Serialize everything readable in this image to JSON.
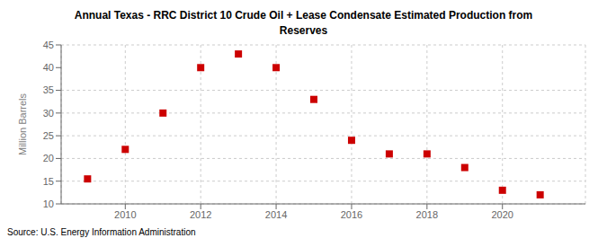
{
  "chart_data": {
    "type": "scatter",
    "title": "Annual Texas - RRC District 10 Crude Oil + Lease Condensate Estimated Production from\nReserves",
    "ylabel": "Million Barrels",
    "annotations": [
      "Source: U.S. Energy Information Administration"
    ],
    "x": [
      2009,
      2010,
      2011,
      2012,
      2013,
      2014,
      2015,
      2016,
      2017,
      2018,
      2019,
      2020,
      2021
    ],
    "values": [
      15.5,
      22.0,
      30.0,
      40.0,
      43.0,
      40.0,
      33.0,
      24.0,
      21.0,
      21.0,
      18.0,
      13.0,
      12.0
    ],
    "color": "#cc0000",
    "marker": "square",
    "xlim": [
      2008.3,
      2022.2
    ],
    "ylim": [
      10,
      45
    ],
    "xticks": [
      2010,
      2012,
      2014,
      2016,
      2018,
      2020
    ],
    "yticks": [
      10,
      15,
      20,
      25,
      30,
      35,
      40,
      45
    ],
    "grid": true
  }
}
